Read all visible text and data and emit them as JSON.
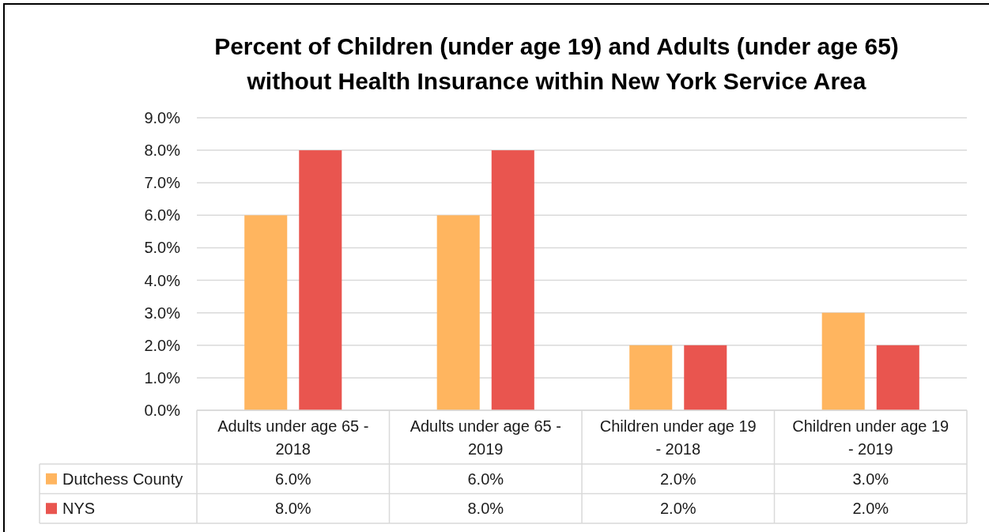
{
  "chart_data": {
    "type": "bar",
    "title": "Percent of Children (under age 19) and Adults (under age 65) without Health Insurance within New York Service Area",
    "categories": [
      "Adults under age 65 - 2018",
      "Adults under age 65 - 2019",
      "Children under age 19 - 2018",
      "Children under age 19 - 2019"
    ],
    "series": [
      {
        "name": "Dutchess County",
        "color": "#ffb55f",
        "values": [
          6.0,
          6.0,
          2.0,
          3.0
        ],
        "value_labels": [
          "6.0%",
          "6.0%",
          "2.0%",
          "3.0%"
        ]
      },
      {
        "name": "NYS",
        "color": "#e9554f",
        "values": [
          8.0,
          8.0,
          2.0,
          2.0
        ],
        "value_labels": [
          "8.0%",
          "8.0%",
          "2.0%",
          "2.0%"
        ]
      }
    ],
    "ylim": [
      0,
      9
    ],
    "yticks": [
      {
        "value": 0,
        "label": "0.0%"
      },
      {
        "value": 1,
        "label": "1.0%"
      },
      {
        "value": 2,
        "label": "2.0%"
      },
      {
        "value": 3,
        "label": "3.0%"
      },
      {
        "value": 4,
        "label": "4.0%"
      },
      {
        "value": 5,
        "label": "5.0%"
      },
      {
        "value": 6,
        "label": "6.0%"
      },
      {
        "value": 7,
        "label": "7.0%"
      },
      {
        "value": 8,
        "label": "8.0%"
      },
      {
        "value": 9,
        "label": "9.0%"
      }
    ],
    "grid": "y",
    "legend": "bottom"
  }
}
